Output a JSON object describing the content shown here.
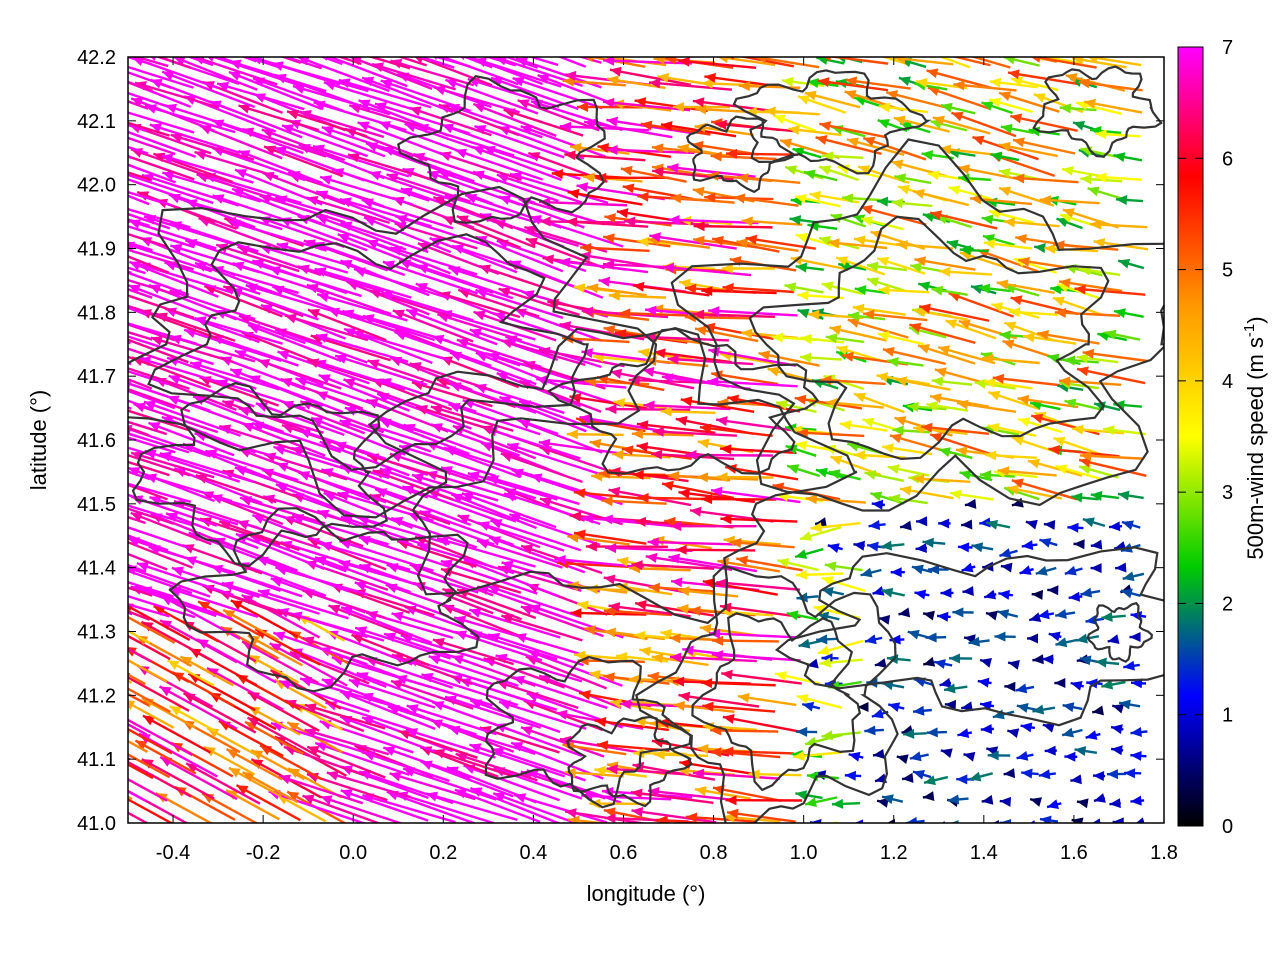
{
  "chart_data": {
    "type": "vector-field",
    "xlabel": "longitude (°)",
    "ylabel": "latitude (°)",
    "colorbar_label": "500m-wind speed (m s-1)",
    "colorbar_label_base": "500m-wind speed (m s",
    "colorbar_label_exp": "-1",
    "colorbar_label_close": ")",
    "xlim": [
      -0.5,
      1.8
    ],
    "ylim": [
      41.0,
      42.2
    ],
    "xticks": [
      "-0.4",
      "-0.2",
      "0.0",
      "0.2",
      "0.4",
      "0.6",
      "0.8",
      "1.0",
      "1.2",
      "1.4",
      "1.6",
      "1.8"
    ],
    "xtick_values": [
      -0.4,
      -0.2,
      0.0,
      0.2,
      0.4,
      0.6,
      0.8,
      1.0,
      1.2,
      1.4,
      1.6,
      1.8
    ],
    "yticks": [
      "41.0",
      "41.1",
      "41.2",
      "41.3",
      "41.4",
      "41.5",
      "41.6",
      "41.7",
      "41.8",
      "41.9",
      "42.0",
      "42.1",
      "42.2"
    ],
    "ytick_values": [
      41.0,
      41.1,
      41.2,
      41.3,
      41.4,
      41.5,
      41.6,
      41.7,
      41.8,
      41.9,
      42.0,
      42.1,
      42.2
    ],
    "colorbar": {
      "range": [
        0,
        7
      ],
      "ticks": [
        "0",
        "1",
        "2",
        "3",
        "4",
        "5",
        "6",
        "7"
      ],
      "tick_values": [
        0,
        1,
        2,
        3,
        4,
        5,
        6,
        7
      ],
      "palette": [
        "#000000",
        "#0000ff",
        "#00cc00",
        "#ffff00",
        "#ff9900",
        "#ff0000",
        "#ff00ff"
      ]
    },
    "contour_color": "#333333",
    "wind_regions": [
      {
        "region": "west (lon < 0.6)",
        "direction": "toward west-northwest",
        "speed_approx": 7
      },
      {
        "region": "central (lon 0.6-1.0)",
        "direction": "toward west",
        "speed_approx": 5
      },
      {
        "region": "northeast (lon > 1.1, lat > 41.5)",
        "direction": "toward west",
        "speed_approx": 3.5
      },
      {
        "region": "southeast (lon > 1.1, lat < 41.45)",
        "direction": "toward west",
        "speed_approx": 1
      }
    ]
  }
}
